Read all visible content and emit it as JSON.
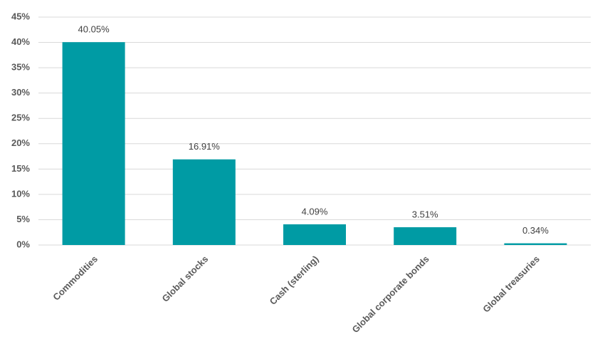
{
  "chart_data": {
    "type": "bar",
    "categories": [
      "Commodities",
      "Global stocks",
      "Cash (sterling)",
      "Global corporate bonds",
      "Global treasuries"
    ],
    "values": [
      40.05,
      16.91,
      4.09,
      3.51,
      0.34
    ],
    "value_labels": [
      "40.05%",
      "16.91%",
      "4.09%",
      "3.51%",
      "0.34%"
    ],
    "color": "#009ba4",
    "ylim": [
      0,
      45
    ],
    "yticks": [
      {
        "value": 0,
        "label": "0%"
      },
      {
        "value": 5,
        "label": "5%"
      },
      {
        "value": 10,
        "label": "10%"
      },
      {
        "value": 15,
        "label": "15%"
      },
      {
        "value": 20,
        "label": "20%"
      },
      {
        "value": 25,
        "label": "25%"
      },
      {
        "value": 30,
        "label": "30%"
      },
      {
        "value": 35,
        "label": "35%"
      },
      {
        "value": 40,
        "label": "40%"
      },
      {
        "value": 45,
        "label": "45%"
      }
    ],
    "grid": true
  }
}
